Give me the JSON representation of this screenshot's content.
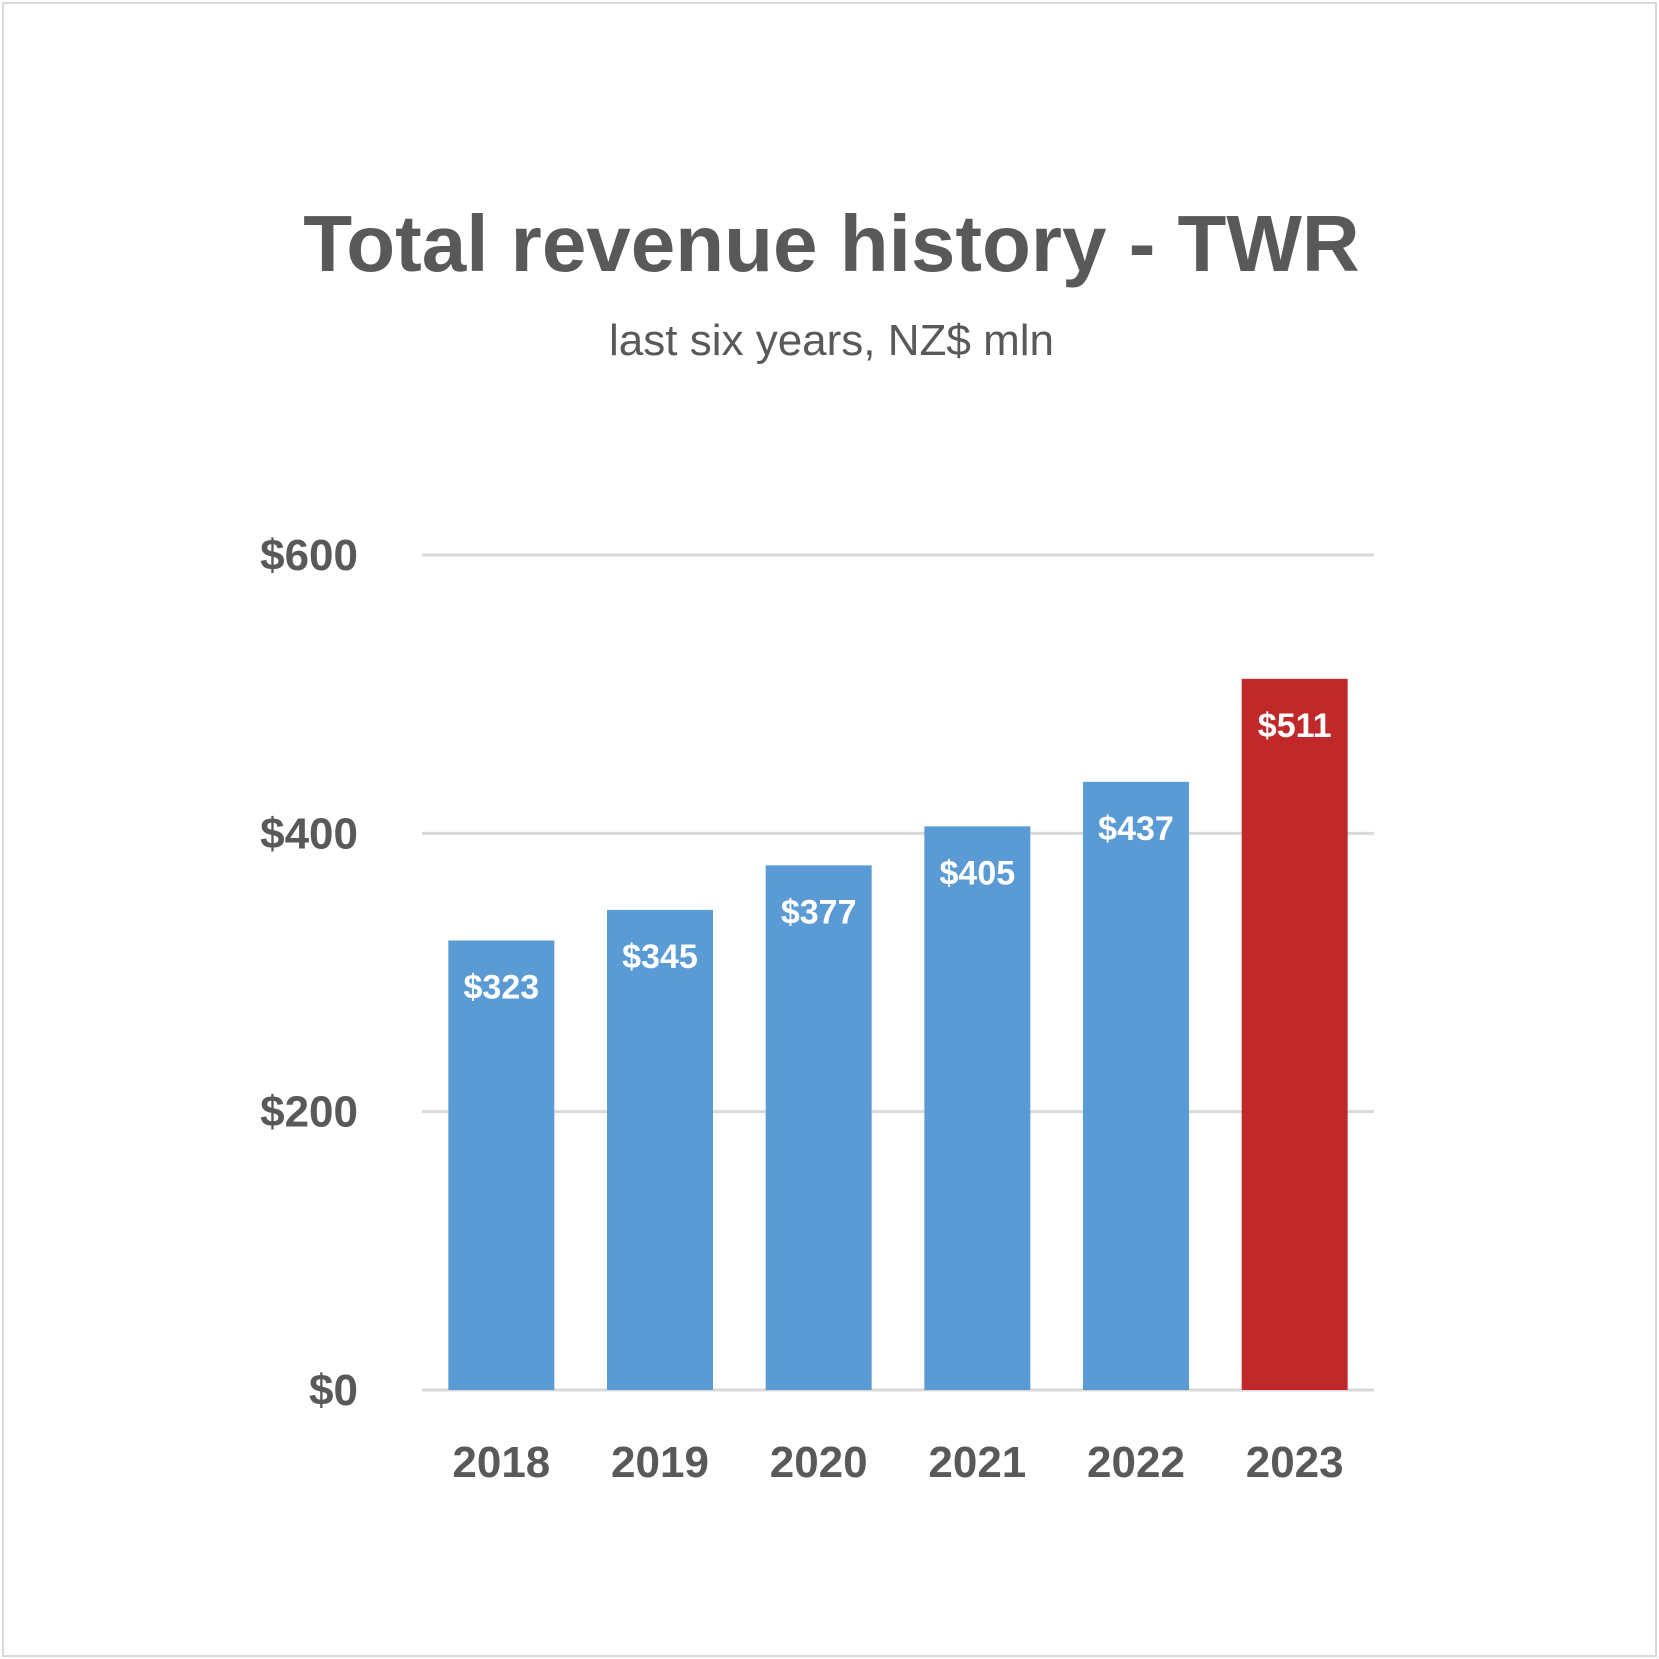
{
  "chart_data": {
    "type": "bar",
    "title": "Total revenue history - TWR",
    "subtitle": "last six years, NZ$ mln",
    "categories": [
      "2018",
      "2019",
      "2020",
      "2021",
      "2022",
      "2023"
    ],
    "values": [
      323,
      345,
      377,
      405,
      437,
      511
    ],
    "data_labels": [
      "$323",
      "$345",
      "$377",
      "$405",
      "$437",
      "$511"
    ],
    "ylim": [
      0,
      600
    ],
    "yticks": [
      0,
      200,
      400,
      600
    ],
    "ytick_labels": [
      "$0",
      "$200",
      "$400",
      "$600"
    ],
    "grid": true,
    "legend": "none",
    "colors": {
      "default_bar": "#5b9bd5",
      "highlight_bar": "#c0282a",
      "highlight_category": "2023",
      "gridline": "#d9d9d9",
      "text": "#595959"
    }
  }
}
